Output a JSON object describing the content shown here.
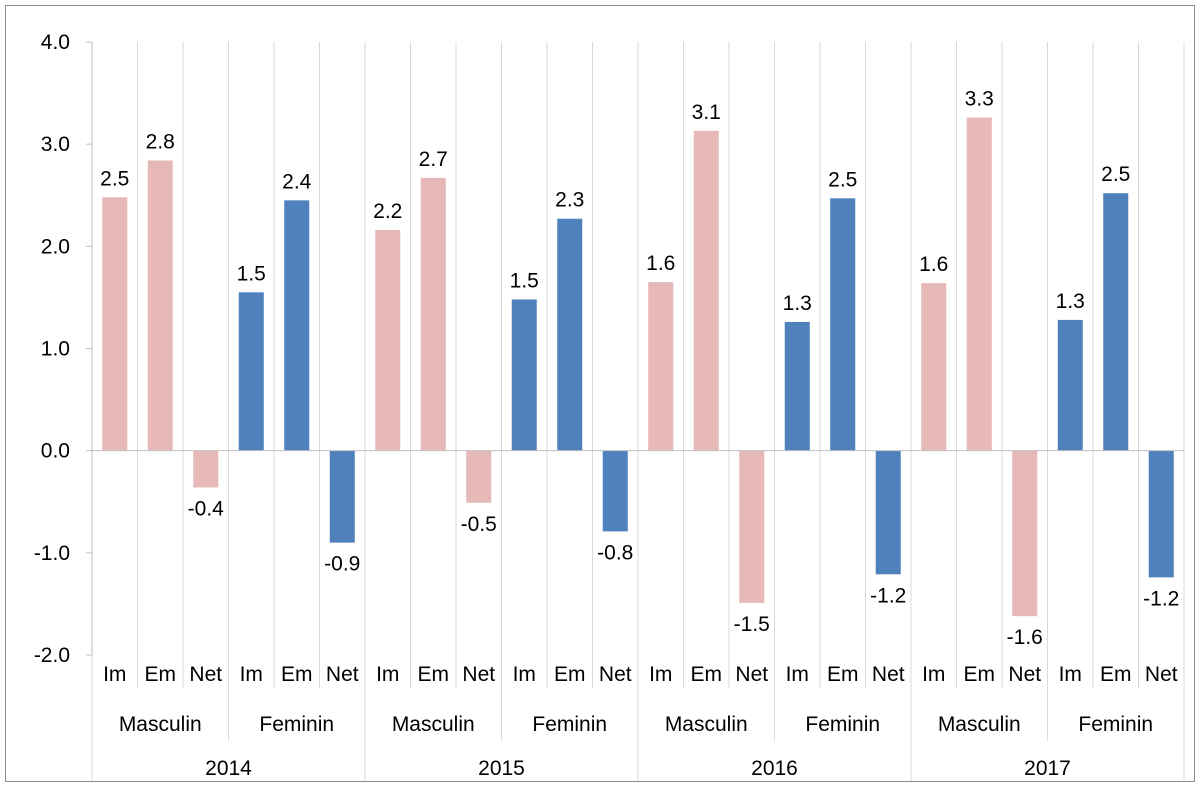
{
  "chart_data": {
    "type": "bar",
    "years": [
      "2014",
      "2015",
      "2016",
      "2017"
    ],
    "genders": [
      "Masculin",
      "Feminin"
    ],
    "measures": [
      "Im",
      "Em",
      "Net"
    ],
    "series": [
      {
        "year": "2014",
        "gender": "Masculin",
        "values": [
          2.48,
          2.84,
          -0.36
        ],
        "labels": [
          "2.5",
          "2.8",
          "-0.4"
        ]
      },
      {
        "year": "2014",
        "gender": "Feminin",
        "values": [
          1.55,
          2.45,
          -0.9
        ],
        "labels": [
          "1.5",
          "2.4",
          "-0.9"
        ]
      },
      {
        "year": "2015",
        "gender": "Masculin",
        "values": [
          2.16,
          2.67,
          -0.51
        ],
        "labels": [
          "2.2",
          "2.7",
          "-0.5"
        ]
      },
      {
        "year": "2015",
        "gender": "Feminin",
        "values": [
          1.48,
          2.27,
          -0.79
        ],
        "labels": [
          "1.5",
          "2.3",
          "-0.8"
        ]
      },
      {
        "year": "2016",
        "gender": "Masculin",
        "values": [
          1.65,
          3.13,
          -1.49
        ],
        "labels": [
          "1.6",
          "3.1",
          "-1.5"
        ]
      },
      {
        "year": "2016",
        "gender": "Feminin",
        "values": [
          1.26,
          2.47,
          -1.21
        ],
        "labels": [
          "1.3",
          "2.5",
          "-1.2"
        ]
      },
      {
        "year": "2017",
        "gender": "Masculin",
        "values": [
          1.64,
          3.26,
          -1.62
        ],
        "labels": [
          "1.6",
          "3.3",
          "-1.6"
        ]
      },
      {
        "year": "2017",
        "gender": "Feminin",
        "values": [
          1.28,
          2.52,
          -1.24
        ],
        "labels": [
          "1.3",
          "2.5",
          "-1.2"
        ]
      }
    ],
    "colors": {
      "Masculin": "#e6b8b7",
      "Feminin": "#4f81bd"
    },
    "yticks": [
      "4.0",
      "3.0",
      "2.0",
      "1.0",
      "0.0",
      "-1.0",
      "-2.0"
    ],
    "ylim": [
      -2.0,
      4.0
    ],
    "title": "",
    "xlabel": "",
    "ylabel": "",
    "grid": "vertical-category-separators",
    "legend": "none"
  }
}
